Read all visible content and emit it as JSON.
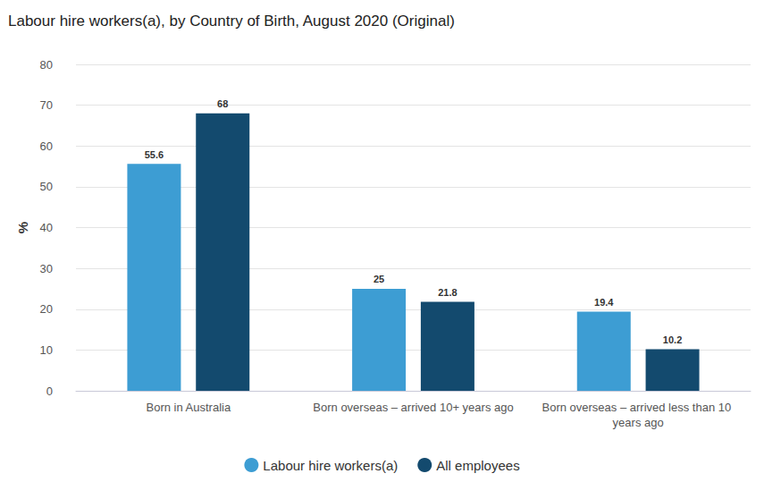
{
  "chart_data": {
    "type": "bar",
    "title": "Labour hire workers(a), by Country of Birth, August 2020 (Original)",
    "y_label": "%",
    "categories": [
      "Born in Australia",
      "Born overseas – arrived 10+ years ago",
      "Born overseas – arrived less than 10 years ago"
    ],
    "series": [
      {
        "name": "Labour hire workers(a)",
        "color": "#3d9dd3",
        "values": [
          55.6,
          25,
          19.4
        ]
      },
      {
        "name": "All employees",
        "color": "#134a6e",
        "values": [
          68,
          21.8,
          10.2
        ]
      }
    ],
    "ylim": [
      0,
      80
    ],
    "yticks": [
      0,
      10,
      20,
      30,
      40,
      50,
      60,
      70,
      80
    ],
    "grid": true,
    "legend": "bottom",
    "data_labels": true
  }
}
